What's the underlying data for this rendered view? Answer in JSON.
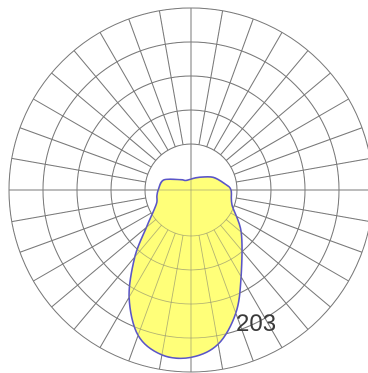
{
  "chart_data": {
    "type": "polar",
    "title": "",
    "grid": true,
    "angular_lines": 36,
    "radial_rings": 5,
    "label": "203",
    "series": [
      {
        "fill_color": "#ffff6e",
        "stroke_color": "#5a55c8",
        "points": [
          {
            "angle_deg": 0,
            "r": 0.22
          },
          {
            "angle_deg": 20,
            "r": 0.24
          },
          {
            "angle_deg": 40,
            "r": 0.36
          },
          {
            "angle_deg": 60,
            "r": 0.55
          },
          {
            "angle_deg": 70,
            "r": 0.72
          },
          {
            "angle_deg": 80,
            "r": 0.86
          },
          {
            "angle_deg": 90,
            "r": 0.92
          },
          {
            "angle_deg": 100,
            "r": 0.92
          },
          {
            "angle_deg": 110,
            "r": 0.85
          },
          {
            "angle_deg": 120,
            "r": 0.68
          },
          {
            "angle_deg": 130,
            "r": 0.48
          },
          {
            "angle_deg": 140,
            "r": 0.32
          },
          {
            "angle_deg": 150,
            "r": 0.24
          },
          {
            "angle_deg": 160,
            "r": 0.2
          },
          {
            "angle_deg": 170,
            "r": 0.19
          },
          {
            "angle_deg": 180,
            "r": 0.18
          },
          {
            "angle_deg": 200,
            "r": 0.16
          },
          {
            "angle_deg": 225,
            "r": 0.08
          },
          {
            "angle_deg": 240,
            "r": 0.06
          },
          {
            "angle_deg": 270,
            "r": 0.06
          },
          {
            "angle_deg": 300,
            "r": 0.08
          },
          {
            "angle_deg": 330,
            "r": 0.14
          },
          {
            "angle_deg": 350,
            "r": 0.19
          }
        ]
      }
    ]
  }
}
